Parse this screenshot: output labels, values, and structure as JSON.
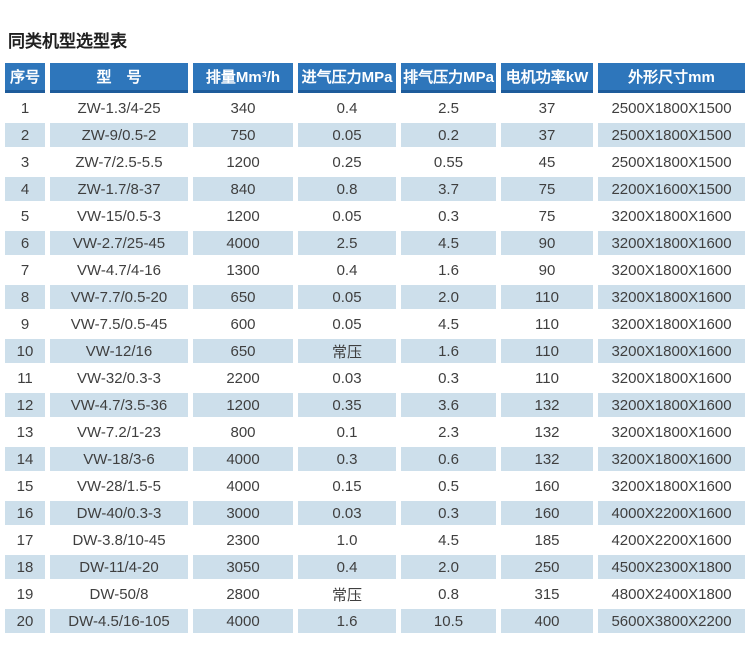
{
  "page": {
    "title": "同类机型选型表"
  },
  "colors": {
    "header_bg": "#2e76bb",
    "header_edge": "#1e5c9b",
    "header_text": "#ffffff",
    "row_alt_bg": "#cddfeb",
    "body_text": "#3f3f3f",
    "title_text": "#1f1f1f"
  },
  "table": {
    "columns": [
      {
        "key": "index",
        "label": "序号"
      },
      {
        "key": "model",
        "label": "型　号"
      },
      {
        "key": "disp",
        "label": "排量Mm³/h"
      },
      {
        "key": "intake",
        "label": "进气压力MPa"
      },
      {
        "key": "exhaust",
        "label": "排气压力MPa"
      },
      {
        "key": "power",
        "label": "电机功率kW"
      },
      {
        "key": "dims",
        "label": "外形尺寸mm"
      }
    ],
    "rows": [
      [
        "1",
        "ZW-1.3/4-25",
        "340",
        "0.4",
        "2.5",
        "37",
        "2500X1800X1500"
      ],
      [
        "2",
        "ZW-9/0.5-2",
        "750",
        "0.05",
        "0.2",
        "37",
        "2500X1800X1500"
      ],
      [
        "3",
        "ZW-7/2.5-5.5",
        "1200",
        "0.25",
        "0.55",
        "45",
        "2500X1800X1500"
      ],
      [
        "4",
        "ZW-1.7/8-37",
        "840",
        "0.8",
        "3.7",
        "75",
        "2200X1600X1500"
      ],
      [
        "5",
        "VW-15/0.5-3",
        "1200",
        "0.05",
        "0.3",
        "75",
        "3200X1800X1600"
      ],
      [
        "6",
        "VW-2.7/25-45",
        "4000",
        "2.5",
        "4.5",
        "90",
        "3200X1800X1600"
      ],
      [
        "7",
        "VW-4.7/4-16",
        "1300",
        "0.4",
        "1.6",
        "90",
        "3200X1800X1600"
      ],
      [
        "8",
        "VW-7.7/0.5-20",
        "650",
        "0.05",
        "2.0",
        "110",
        "3200X1800X1600"
      ],
      [
        "9",
        "VW-7.5/0.5-45",
        "600",
        "0.05",
        "4.5",
        "110",
        "3200X1800X1600"
      ],
      [
        "10",
        "VW-12/16",
        "650",
        "常压",
        "1.6",
        "110",
        "3200X1800X1600"
      ],
      [
        "11",
        "VW-32/0.3-3",
        "2200",
        "0.03",
        "0.3",
        "110",
        "3200X1800X1600"
      ],
      [
        "12",
        "VW-4.7/3.5-36",
        "1200",
        "0.35",
        "3.6",
        "132",
        "3200X1800X1600"
      ],
      [
        "13",
        "VW-7.2/1-23",
        "800",
        "0.1",
        "2.3",
        "132",
        "3200X1800X1600"
      ],
      [
        "14",
        "VW-18/3-6",
        "4000",
        "0.3",
        "0.6",
        "132",
        "3200X1800X1600"
      ],
      [
        "15",
        "VW-28/1.5-5",
        "4000",
        "0.15",
        "0.5",
        "160",
        "3200X1800X1600"
      ],
      [
        "16",
        "DW-40/0.3-3",
        "3000",
        "0.03",
        "0.3",
        "160",
        "4000X2200X1600"
      ],
      [
        "17",
        "DW-3.8/10-45",
        "2300",
        "1.0",
        "4.5",
        "185",
        "4200X2200X1600"
      ],
      [
        "18",
        "DW-11/4-20",
        "3050",
        "0.4",
        "2.0",
        "250",
        "4500X2300X1800"
      ],
      [
        "19",
        "DW-50/8",
        "2800",
        "常压",
        "0.8",
        "315",
        "4800X2400X1800"
      ],
      [
        "20",
        "DW-4.5/16-105",
        "4000",
        "1.6",
        "10.5",
        "400",
        "5600X3800X2200"
      ]
    ]
  }
}
